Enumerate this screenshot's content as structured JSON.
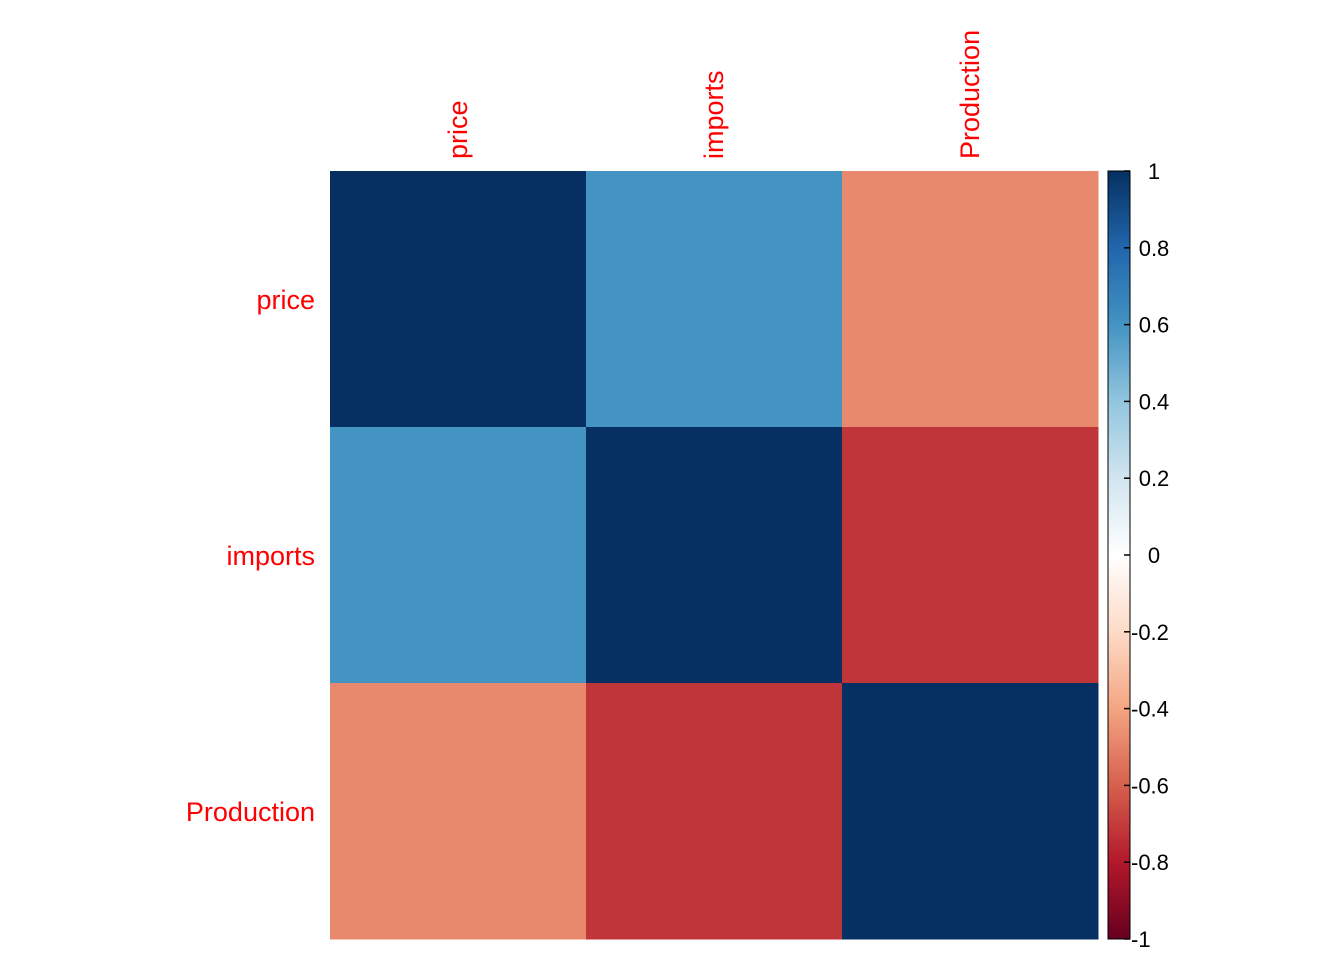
{
  "chart_data": {
    "type": "heatmap",
    "title": "",
    "variables": [
      "price",
      "imports",
      "Production"
    ],
    "matrix": [
      [
        1.0,
        0.6,
        -0.48
      ],
      [
        0.6,
        1.0,
        -0.72
      ],
      [
        -0.48,
        -0.72,
        1.0
      ]
    ],
    "colorbar": {
      "min": -1,
      "max": 1,
      "ticks": [
        1,
        0.8,
        0.6,
        0.4,
        0.2,
        0,
        -0.2,
        -0.4,
        -0.6,
        -0.8,
        -1
      ],
      "tick_labels": [
        "1",
        "0.8",
        "0.6",
        "0.4",
        "0.2",
        "0",
        "-0.2",
        "-0.4",
        "-0.6",
        "-0.8",
        "-1"
      ],
      "palette": [
        "#67001F",
        "#B2182B",
        "#D6604D",
        "#F4A582",
        "#FDDBC7",
        "#FFFFFF",
        "#D1E5F0",
        "#92C5DE",
        "#4393C3",
        "#2166AC",
        "#053061"
      ]
    },
    "label_color": "#FF0000",
    "legend_position": "right"
  }
}
